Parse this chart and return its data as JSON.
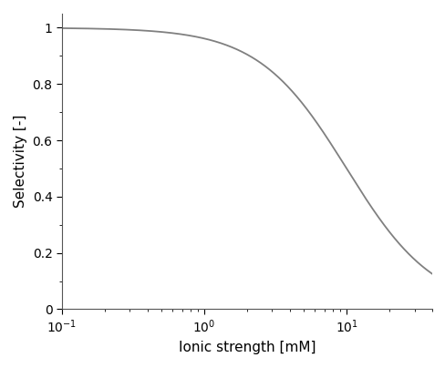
{
  "xlabel": "Ionic strength [mM]",
  "ylabel": "Selectivity [-]",
  "line_color": "#808080",
  "line_width": 1.3,
  "xlim": [
    0.1,
    40
  ],
  "ylim": [
    0,
    1.05
  ],
  "background_color": "#ffffff",
  "curve_params": {
    "x_start": 0.1,
    "x_end": 40,
    "n_points": 2000,
    "midpoint": 2.5,
    "steepness": 1.3
  },
  "yticks": [
    0,
    0.2,
    0.4,
    0.6,
    0.8,
    1.0
  ],
  "xtick_labels": [
    "$10^{-1}$",
    "$10^{0}$",
    "$10^{1}$"
  ],
  "xtick_positions": [
    0.1,
    1.0,
    10.0
  ]
}
